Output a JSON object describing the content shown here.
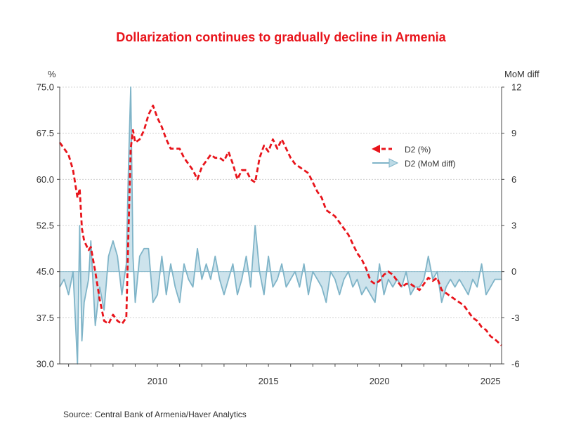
{
  "chart_data": {
    "type": "line",
    "title": "Dollarization continues to gradually decline in Armenia",
    "source": "Source:  Central Bank of Armenia/Haver Analytics",
    "left_axis": {
      "unit_label": "%",
      "range": [
        30,
        75
      ],
      "ticks": [
        30,
        37.5,
        45,
        52.5,
        60,
        67.5,
        75
      ],
      "tick_labels": [
        "30.0",
        "37.5",
        "45.0",
        "52.5",
        "60.0",
        "67.5",
        "75.0"
      ]
    },
    "right_axis": {
      "unit_label": "MoM diff",
      "range": [
        -6,
        12
      ],
      "ticks": [
        -6,
        -3,
        0,
        3,
        6,
        9,
        12
      ],
      "tick_labels": [
        "-6",
        "-3",
        "0",
        "3",
        "6",
        "9",
        "12"
      ]
    },
    "x_axis": {
      "range": [
        2005.6,
        2025.5
      ],
      "ticks": [
        2010,
        2015,
        2020,
        2025
      ],
      "tick_labels": [
        "2010",
        "2015",
        "2020",
        "2025"
      ]
    },
    "grid": true,
    "legend": {
      "position": "top-right",
      "entries": [
        {
          "label": "D2 (%)",
          "color": "#e8141b",
          "style": "dashed"
        },
        {
          "label": "D2 (MoM diff)",
          "color": "#7fb4c8",
          "style": "area"
        }
      ]
    },
    "series": [
      {
        "name": "D2 (%)",
        "axis": "left",
        "color": "#e8141b",
        "x": [
          2005.6,
          2005.8,
          2006.0,
          2006.2,
          2006.4,
          2006.5,
          2006.6,
          2006.7,
          2006.9,
          2007.0,
          2007.2,
          2007.4,
          2007.6,
          2007.8,
          2008.0,
          2008.2,
          2008.4,
          2008.6,
          2008.7,
          2008.8,
          2008.9,
          2009.0,
          2009.2,
          2009.4,
          2009.6,
          2009.8,
          2010.0,
          2010.2,
          2010.4,
          2010.6,
          2010.8,
          2011.0,
          2011.2,
          2011.4,
          2011.6,
          2011.8,
          2012.0,
          2012.2,
          2012.4,
          2012.6,
          2012.8,
          2013.0,
          2013.2,
          2013.4,
          2013.6,
          2013.8,
          2014.0,
          2014.2,
          2014.4,
          2014.6,
          2014.8,
          2015.0,
          2015.2,
          2015.4,
          2015.6,
          2015.8,
          2016.0,
          2016.2,
          2016.4,
          2016.6,
          2016.8,
          2017.0,
          2017.2,
          2017.4,
          2017.6,
          2017.8,
          2018.0,
          2018.2,
          2018.4,
          2018.6,
          2018.8,
          2019.0,
          2019.2,
          2019.4,
          2019.6,
          2019.8,
          2020.0,
          2020.2,
          2020.4,
          2020.6,
          2020.8,
          2021.0,
          2021.2,
          2021.4,
          2021.6,
          2021.8,
          2022.0,
          2022.2,
          2022.4,
          2022.6,
          2022.8,
          2023.0,
          2023.2,
          2023.4,
          2023.6,
          2023.8,
          2024.0,
          2024.2,
          2024.4,
          2024.6,
          2024.8,
          2025.0,
          2025.2,
          2025.5
        ],
        "values": [
          66.0,
          65.0,
          64.0,
          61.5,
          57.0,
          58.5,
          52.0,
          50.0,
          48.5,
          49.0,
          45.0,
          40.5,
          37.0,
          36.5,
          38.0,
          37.0,
          36.5,
          37.5,
          52.0,
          65.0,
          68.0,
          66.0,
          66.5,
          68.0,
          70.5,
          72.0,
          70.0,
          68.5,
          66.5,
          65.0,
          65.0,
          65.0,
          63.5,
          62.5,
          61.5,
          60.0,
          62.0,
          63.0,
          64.0,
          63.5,
          63.5,
          63.0,
          64.5,
          62.5,
          60.0,
          61.5,
          61.5,
          60.0,
          59.5,
          63.5,
          65.5,
          64.5,
          66.5,
          65.0,
          66.5,
          65.0,
          63.5,
          62.5,
          62.0,
          61.5,
          61.0,
          59.5,
          58.0,
          57.0,
          55.0,
          54.5,
          54.0,
          53.0,
          52.0,
          51.0,
          49.5,
          48.0,
          47.0,
          45.5,
          43.5,
          43.0,
          43.5,
          44.5,
          45.0,
          44.5,
          43.5,
          42.5,
          43.0,
          43.0,
          42.5,
          42.0,
          43.0,
          44.0,
          43.5,
          44.0,
          42.0,
          41.5,
          41.0,
          40.5,
          40.0,
          39.5,
          38.5,
          37.5,
          37.0,
          36.0,
          35.5,
          34.5,
          34.0,
          33.0
        ]
      },
      {
        "name": "D2 (MoM diff)",
        "axis": "right",
        "color": "#7fb4c8",
        "x": [
          2005.6,
          2005.8,
          2006.0,
          2006.2,
          2006.4,
          2006.5,
          2006.6,
          2006.7,
          2006.9,
          2007.0,
          2007.2,
          2007.4,
          2007.6,
          2007.8,
          2008.0,
          2008.2,
          2008.4,
          2008.6,
          2008.7,
          2008.8,
          2008.9,
          2009.0,
          2009.2,
          2009.4,
          2009.6,
          2009.8,
          2010.0,
          2010.2,
          2010.4,
          2010.6,
          2010.8,
          2011.0,
          2011.2,
          2011.4,
          2011.6,
          2011.8,
          2012.0,
          2012.2,
          2012.4,
          2012.6,
          2012.8,
          2013.0,
          2013.2,
          2013.4,
          2013.6,
          2013.8,
          2014.0,
          2014.2,
          2014.4,
          2014.6,
          2014.8,
          2015.0,
          2015.2,
          2015.4,
          2015.6,
          2015.8,
          2016.0,
          2016.2,
          2016.4,
          2016.6,
          2016.8,
          2017.0,
          2017.2,
          2017.4,
          2017.6,
          2017.8,
          2018.0,
          2018.2,
          2018.4,
          2018.6,
          2018.8,
          2019.0,
          2019.2,
          2019.4,
          2019.6,
          2019.8,
          2020.0,
          2020.2,
          2020.4,
          2020.6,
          2020.8,
          2021.0,
          2021.2,
          2021.4,
          2021.6,
          2021.8,
          2022.0,
          2022.2,
          2022.4,
          2022.6,
          2022.8,
          2023.0,
          2023.2,
          2023.4,
          2023.6,
          2023.8,
          2024.0,
          2024.2,
          2024.4,
          2024.6,
          2024.8,
          2025.0,
          2025.2,
          2025.5
        ],
        "values": [
          -1.0,
          -0.5,
          -1.5,
          0.0,
          -6.0,
          3.0,
          -4.5,
          -2.0,
          -0.5,
          2.0,
          -3.5,
          -1.0,
          -2.5,
          1.0,
          2.0,
          1.0,
          -1.5,
          0.5,
          7.0,
          12.0,
          1.0,
          -2.0,
          1.0,
          1.5,
          1.5,
          -2.0,
          -1.5,
          1.0,
          -1.5,
          0.5,
          -1.0,
          -2.0,
          0.5,
          -0.5,
          -1.0,
          1.5,
          -0.5,
          0.5,
          -0.5,
          1.0,
          -0.5,
          -1.5,
          -0.5,
          0.5,
          -1.5,
          -0.5,
          1.0,
          -1.0,
          3.0,
          0.0,
          -1.5,
          1.0,
          -1.0,
          -0.5,
          0.5,
          -1.0,
          -0.5,
          0.0,
          -1.0,
          0.5,
          -1.5,
          0.0,
          -0.5,
          -1.0,
          -2.0,
          0.0,
          -0.5,
          -1.5,
          -0.5,
          0.0,
          -1.0,
          -0.5,
          -1.5,
          -1.0,
          -1.5,
          -2.0,
          0.5,
          -1.5,
          -0.5,
          -1.0,
          -0.5,
          -1.0,
          0.0,
          -1.5,
          -1.0,
          -1.0,
          -0.5,
          1.0,
          -0.5,
          0.0,
          -2.0,
          -1.0,
          -0.5,
          -1.0,
          -0.5,
          -1.0,
          -1.5,
          -0.5,
          -1.0,
          0.5,
          -1.5,
          -1.0,
          -0.5,
          -0.5
        ]
      }
    ]
  }
}
